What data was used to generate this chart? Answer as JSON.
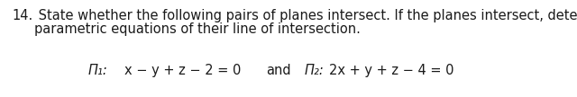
{
  "line1_num": "14.",
  "line1_rest": " State whether the following pairs of planes intersect. If the planes intersect, determine the",
  "line2": "     parametric equations of their line of intersection.",
  "pi1_label": "Π₁:",
  "pi1_eq": "x − y + z − 2 = 0",
  "and_text": "and",
  "pi2_label": "Π₂:",
  "pi2_eq": "2x + y + z − 4 = 0",
  "font_size_body": 10.5,
  "font_size_eq": 10.5,
  "text_color": "#1a1a1a",
  "bg_color": "#ffffff",
  "fig_width": 6.4,
  "fig_height": 1.08,
  "dpi": 100
}
